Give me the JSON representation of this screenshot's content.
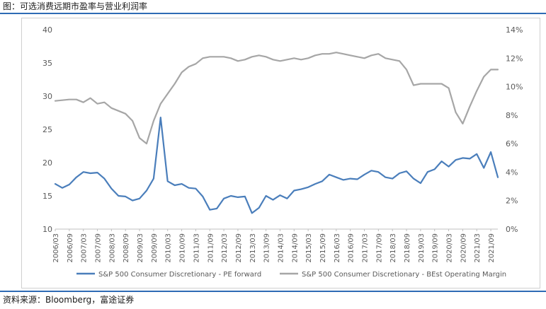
{
  "figure_title": "图：可选消费远期市盈率与营业利润率",
  "source": "资料来源：Bloomberg，富途证券",
  "chart_data": {
    "type": "line",
    "x": [
      "2006/03",
      "2006/06",
      "2006/09",
      "2006/12",
      "2007/03",
      "2007/06",
      "2007/09",
      "2007/12",
      "2008/03",
      "2008/06",
      "2008/09",
      "2008/12",
      "2009/03",
      "2009/06",
      "2009/09",
      "2009/12",
      "2010/03",
      "2010/06",
      "2010/09",
      "2010/12",
      "2011/03",
      "2011/06",
      "2011/09",
      "2011/12",
      "2012/03",
      "2012/06",
      "2012/09",
      "2012/12",
      "2013/03",
      "2013/06",
      "2013/09",
      "2013/12",
      "2014/03",
      "2014/06",
      "2014/09",
      "2014/12",
      "2015/03",
      "2015/06",
      "2015/09",
      "2015/12",
      "2016/03",
      "2016/06",
      "2016/09",
      "2016/12",
      "2017/03",
      "2017/06",
      "2017/09",
      "2017/12",
      "2018/03",
      "2018/06",
      "2018/09",
      "2018/12",
      "2019/03",
      "2019/06",
      "2019/09",
      "2019/12",
      "2020/03",
      "2020/06",
      "2020/09",
      "2020/12",
      "2021/03",
      "2021/06",
      "2021/09",
      "2021/12"
    ],
    "x_tick_labels": [
      "2006/03",
      "2006/09",
      "2007/03",
      "2007/09",
      "2008/03",
      "2008/09",
      "2009/03",
      "2009/09",
      "2010/03",
      "2010/09",
      "2011/03",
      "2011/09",
      "2012/03",
      "2012/09",
      "2013/03",
      "2013/09",
      "2014/03",
      "2014/09",
      "2015/03",
      "2015/09",
      "2016/03",
      "2016/09",
      "2017/03",
      "2017/09",
      "2018/03",
      "2018/09",
      "2019/03",
      "2019/09",
      "2020/03",
      "2020/09",
      "2021/03",
      "2021/09"
    ],
    "y_left": {
      "ticks": [
        "10",
        "15",
        "20",
        "25",
        "30",
        "35",
        "40"
      ],
      "range": [
        10,
        40
      ]
    },
    "y_right": {
      "ticks": [
        "0%",
        "2%",
        "4%",
        "6%",
        "8%",
        "10%",
        "12%",
        "14%"
      ],
      "range": [
        0,
        14
      ]
    },
    "series": [
      {
        "name": "S&P 500 Consumer Discretionary - PE forward",
        "axis": "left",
        "color": "#4a7ebb",
        "values": [
          16.8,
          16.2,
          16.7,
          17.8,
          18.6,
          18.4,
          18.5,
          17.6,
          16.1,
          15.0,
          14.9,
          14.3,
          14.6,
          15.8,
          17.6,
          26.8,
          17.2,
          16.6,
          16.8,
          16.2,
          16.1,
          14.9,
          12.9,
          13.1,
          14.6,
          15.0,
          14.8,
          14.9,
          12.4,
          13.2,
          15.0,
          14.4,
          15.1,
          14.6,
          15.8,
          16.0,
          16.3,
          16.8,
          17.2,
          18.2,
          17.8,
          17.4,
          17.6,
          17.5,
          18.2,
          18.8,
          18.6,
          17.8,
          17.6,
          18.4,
          18.7,
          17.6,
          16.9,
          18.6,
          19.0,
          20.2,
          19.4,
          20.4,
          20.7,
          20.6,
          21.3,
          19.2,
          21.6,
          17.8
        ]
      },
      {
        "name": "S&P 500 Consumer Discretionary - BEst Operating Margin",
        "axis": "right",
        "color": "#a6a6a6",
        "values": [
          9.0,
          9.05,
          9.1,
          9.1,
          8.9,
          9.2,
          8.8,
          8.9,
          8.5,
          8.3,
          8.1,
          7.6,
          6.4,
          6.0,
          7.6,
          8.8,
          9.5,
          10.2,
          11.0,
          11.4,
          11.6,
          12.0,
          12.1,
          12.1,
          12.1,
          12.0,
          11.8,
          11.9,
          12.1,
          12.2,
          12.1,
          11.9,
          11.8,
          11.9,
          12.0,
          11.9,
          12.0,
          12.2,
          12.3,
          12.3,
          12.4,
          12.3,
          12.2,
          12.1,
          12.0,
          12.2,
          12.3,
          12.0,
          11.9,
          11.8,
          11.2,
          10.1,
          10.2,
          10.2,
          10.2,
          10.2,
          9.9,
          8.2,
          7.4,
          8.6,
          9.7,
          10.7,
          11.2,
          11.2
        ]
      }
    ],
    "legend_position": "bottom",
    "grid": false
  }
}
